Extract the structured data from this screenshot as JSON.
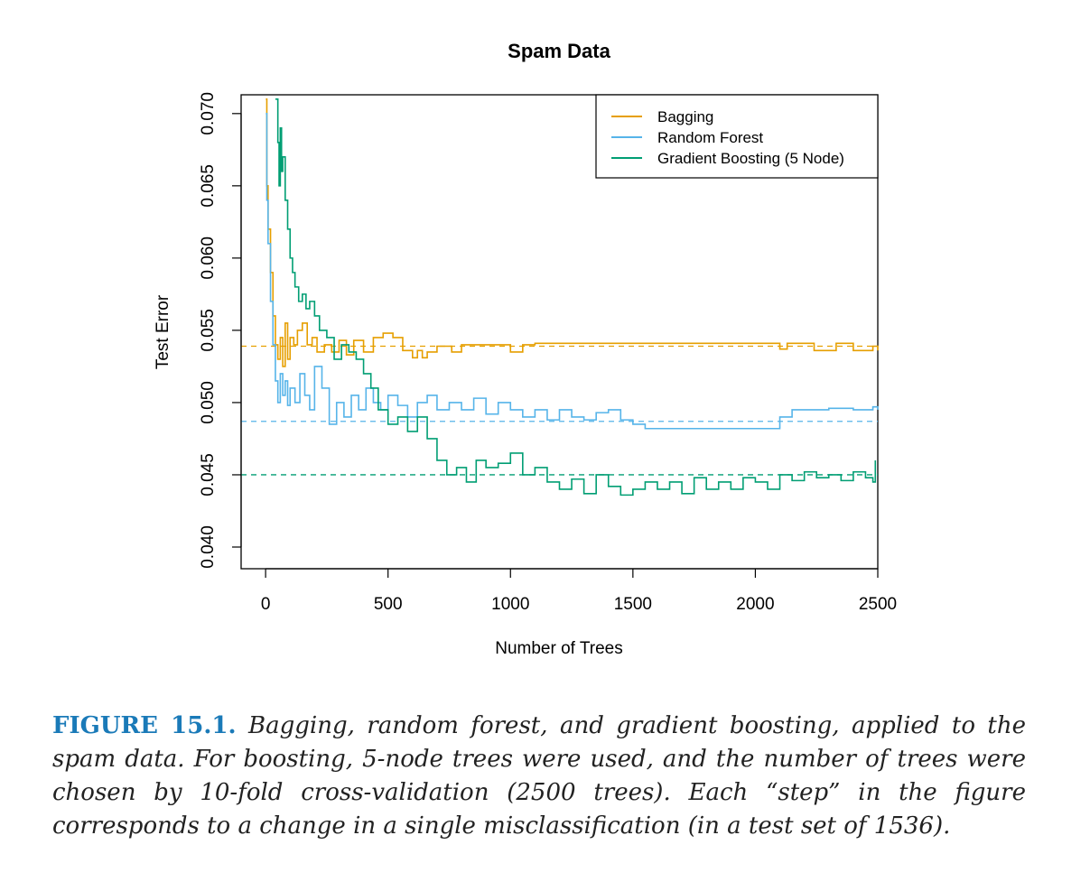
{
  "chart_data": {
    "type": "line",
    "title": "Spam Data",
    "xlabel": "Number of Trees",
    "ylabel": "Test Error",
    "xlim": [
      -100,
      2500
    ],
    "ylim": [
      0.0385,
      0.0713
    ],
    "xticks": [
      "0",
      "500",
      "1000",
      "1500",
      "2000",
      "2500"
    ],
    "yticks": [
      "0.040",
      "0.045",
      "0.050",
      "0.055",
      "0.060",
      "0.065",
      "0.070"
    ],
    "legend_position": "top-right",
    "legend": [
      "Bagging",
      "Random Forest",
      "Gradient Boosting (5 Node)"
    ],
    "series": [
      {
        "name": "Bagging",
        "color": "#E69F00",
        "reference_line": 0.0539,
        "x": [
          1,
          5,
          10,
          20,
          30,
          40,
          50,
          60,
          70,
          80,
          90,
          100,
          115,
          130,
          150,
          170,
          190,
          210,
          240,
          270,
          300,
          330,
          360,
          400,
          440,
          480,
          520,
          560,
          600,
          620,
          640,
          660,
          700,
          760,
          800,
          1000,
          1050,
          1100,
          2100,
          2130,
          2240,
          2330,
          2400,
          2480,
          2500
        ],
        "y": [
          0.071,
          0.065,
          0.062,
          0.059,
          0.056,
          0.054,
          0.053,
          0.0545,
          0.0525,
          0.0555,
          0.053,
          0.0545,
          0.054,
          0.055,
          0.0555,
          0.054,
          0.0545,
          0.0535,
          0.054,
          0.0535,
          0.0543,
          0.0533,
          0.0543,
          0.0535,
          0.0545,
          0.0548,
          0.0545,
          0.0536,
          0.0531,
          0.0536,
          0.0531,
          0.0535,
          0.0539,
          0.0535,
          0.054,
          0.0535,
          0.054,
          0.0541,
          0.0537,
          0.0541,
          0.0536,
          0.0541,
          0.0536,
          0.0539,
          0.0536
        ]
      },
      {
        "name": "Random Forest",
        "color": "#56B4E9",
        "reference_line": 0.0487,
        "x": [
          1,
          5,
          10,
          20,
          30,
          40,
          50,
          60,
          70,
          80,
          90,
          100,
          120,
          140,
          160,
          180,
          200,
          230,
          260,
          290,
          320,
          350,
          380,
          410,
          440,
          470,
          500,
          540,
          580,
          620,
          660,
          700,
          750,
          800,
          850,
          900,
          950,
          1000,
          1050,
          1100,
          1150,
          1200,
          1250,
          1300,
          1350,
          1400,
          1450,
          1500,
          1550,
          2100,
          2150,
          2300,
          2400,
          2480,
          2500
        ],
        "y": [
          0.07,
          0.064,
          0.061,
          0.057,
          0.054,
          0.0515,
          0.05,
          0.052,
          0.0505,
          0.0515,
          0.0498,
          0.051,
          0.05,
          0.052,
          0.0505,
          0.0495,
          0.0525,
          0.051,
          0.0485,
          0.05,
          0.049,
          0.0505,
          0.0495,
          0.051,
          0.05,
          0.0495,
          0.0505,
          0.0498,
          0.049,
          0.05,
          0.0505,
          0.0495,
          0.05,
          0.0495,
          0.0503,
          0.0492,
          0.05,
          0.0495,
          0.049,
          0.0495,
          0.0488,
          0.0495,
          0.049,
          0.0488,
          0.0493,
          0.0495,
          0.0488,
          0.0485,
          0.0482,
          0.049,
          0.0495,
          0.0496,
          0.0495,
          0.0497,
          0.0495
        ]
      },
      {
        "name": "Gradient Boosting (5 Node)",
        "color": "#009E73",
        "reference_line": 0.045,
        "x": [
          40,
          50,
          55,
          60,
          65,
          70,
          80,
          90,
          100,
          110,
          120,
          135,
          150,
          165,
          180,
          200,
          220,
          250,
          280,
          310,
          340,
          370,
          400,
          430,
          460,
          500,
          540,
          580,
          620,
          660,
          700,
          740,
          780,
          820,
          860,
          900,
          950,
          1000,
          1050,
          1100,
          1150,
          1200,
          1250,
          1300,
          1350,
          1400,
          1450,
          1500,
          1550,
          1600,
          1650,
          1700,
          1750,
          1800,
          1850,
          1900,
          1950,
          2000,
          2050,
          2100,
          2150,
          2200,
          2250,
          2300,
          2350,
          2400,
          2450,
          2480,
          2490
        ],
        "y": [
          0.071,
          0.068,
          0.065,
          0.069,
          0.066,
          0.067,
          0.064,
          0.062,
          0.06,
          0.059,
          0.058,
          0.057,
          0.0575,
          0.0565,
          0.057,
          0.056,
          0.055,
          0.0545,
          0.053,
          0.054,
          0.0535,
          0.053,
          0.052,
          0.051,
          0.0495,
          0.0485,
          0.049,
          0.048,
          0.049,
          0.0475,
          0.046,
          0.045,
          0.0455,
          0.0445,
          0.046,
          0.0455,
          0.0458,
          0.0465,
          0.045,
          0.0455,
          0.0445,
          0.044,
          0.0447,
          0.0437,
          0.045,
          0.0442,
          0.0436,
          0.044,
          0.0445,
          0.044,
          0.0445,
          0.0437,
          0.0448,
          0.044,
          0.0445,
          0.044,
          0.0448,
          0.0445,
          0.044,
          0.045,
          0.0446,
          0.0452,
          0.0448,
          0.045,
          0.0446,
          0.0452,
          0.0448,
          0.0445,
          0.046
        ]
      }
    ]
  },
  "caption": {
    "label": "FIGURE 15.1.",
    "text": "Bagging, random forest, and gradient boosting, applied to the spam data. For boosting, 5-node trees were used, and the number of trees were chosen by 10-fold cross-validation (2500 trees). Each “step” in the figure corresponds to a change in a single misclassification (in a test set of 1536)."
  }
}
